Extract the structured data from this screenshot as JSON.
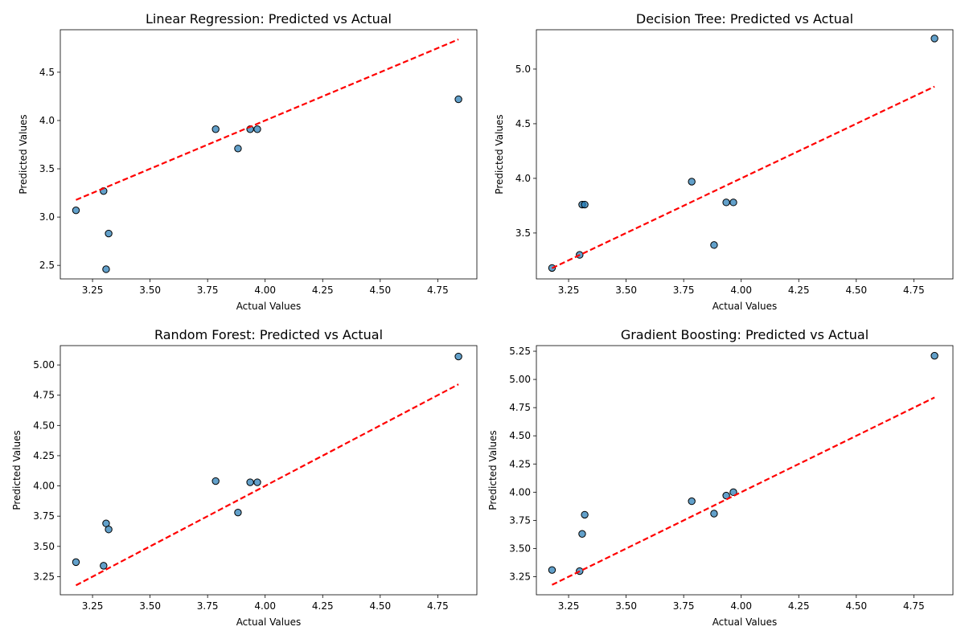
{
  "chart_data": [
    {
      "type": "scatter",
      "title": "Linear Regression: Predicted vs Actual",
      "xlabel": "Actual Values",
      "ylabel": "Predicted Values",
      "xlim": [
        3.11,
        4.92
      ],
      "ylim": [
        2.36,
        4.94
      ],
      "xticks": [
        3.25,
        3.5,
        3.75,
        4.0,
        4.25,
        4.5,
        4.75
      ],
      "xticklabels": [
        "3.25",
        "3.50",
        "3.75",
        "4.00",
        "4.25",
        "4.50",
        "4.75"
      ],
      "yticks": [
        2.5,
        3.0,
        3.5,
        4.0,
        4.5
      ],
      "yticklabels": [
        "2.5",
        "3.0",
        "3.5",
        "4.0",
        "4.5"
      ],
      "x": [
        3.178,
        3.298,
        3.309,
        3.32,
        3.785,
        3.882,
        3.935,
        3.966,
        4.84
      ],
      "y": [
        3.07,
        3.27,
        2.46,
        2.83,
        3.91,
        3.71,
        3.91,
        3.91,
        4.22
      ],
      "reference_line": [
        3.178,
        4.84
      ],
      "point_color": "#1f77b4",
      "line_color": "#ff0000"
    },
    {
      "type": "scatter",
      "title": "Decision Tree: Predicted vs Actual",
      "xlabel": "Actual Values",
      "ylabel": "Predicted Values",
      "xlim": [
        3.11,
        4.92
      ],
      "ylim": [
        3.08,
        5.36
      ],
      "xticks": [
        3.25,
        3.5,
        3.75,
        4.0,
        4.25,
        4.5,
        4.75
      ],
      "xticklabels": [
        "3.25",
        "3.50",
        "3.75",
        "4.00",
        "4.25",
        "4.50",
        "4.75"
      ],
      "yticks": [
        3.5,
        4.0,
        4.5,
        5.0
      ],
      "yticklabels": [
        "3.5",
        "4.0",
        "4.5",
        "5.0"
      ],
      "x": [
        3.178,
        3.298,
        3.309,
        3.32,
        3.785,
        3.882,
        3.935,
        3.966,
        4.84
      ],
      "y": [
        3.18,
        3.3,
        3.76,
        3.76,
        3.97,
        3.39,
        3.78,
        3.78,
        5.28
      ],
      "reference_line": [
        3.178,
        4.84
      ],
      "point_color": "#1f77b4",
      "line_color": "#ff0000"
    },
    {
      "type": "scatter",
      "title": "Random Forest: Predicted vs Actual",
      "xlabel": "Actual Values",
      "ylabel": "Predicted Values",
      "xlim": [
        3.11,
        4.92
      ],
      "ylim": [
        3.1,
        5.16
      ],
      "xticks": [
        3.25,
        3.5,
        3.75,
        4.0,
        4.25,
        4.5,
        4.75
      ],
      "xticklabels": [
        "3.25",
        "3.50",
        "3.75",
        "4.00",
        "4.25",
        "4.50",
        "4.75"
      ],
      "yticks": [
        3.25,
        3.5,
        3.75,
        4.0,
        4.25,
        4.5,
        4.75,
        5.0
      ],
      "yticklabels": [
        "3.25",
        "3.50",
        "3.75",
        "4.00",
        "4.25",
        "4.50",
        "4.75",
        "5.00"
      ],
      "x": [
        3.178,
        3.298,
        3.309,
        3.32,
        3.785,
        3.882,
        3.935,
        3.966,
        4.84
      ],
      "y": [
        3.37,
        3.34,
        3.69,
        3.64,
        4.04,
        3.78,
        4.03,
        4.03,
        5.07
      ],
      "reference_line": [
        3.178,
        4.84
      ],
      "point_color": "#1f77b4",
      "line_color": "#ff0000"
    },
    {
      "type": "scatter",
      "title": "Gradient Boosting: Predicted vs Actual",
      "xlabel": "Actual Values",
      "ylabel": "Predicted Values",
      "xlim": [
        3.11,
        4.92
      ],
      "ylim": [
        3.09,
        5.3
      ],
      "xticks": [
        3.25,
        3.5,
        3.75,
        4.0,
        4.25,
        4.5,
        4.75
      ],
      "xticklabels": [
        "3.25",
        "3.50",
        "3.75",
        "4.00",
        "4.25",
        "4.50",
        "4.75"
      ],
      "yticks": [
        3.25,
        3.5,
        3.75,
        4.0,
        4.25,
        4.5,
        4.75,
        5.0,
        5.25
      ],
      "yticklabels": [
        "3.25",
        "3.50",
        "3.75",
        "4.00",
        "4.25",
        "4.50",
        "4.75",
        "5.00",
        "5.25"
      ],
      "x": [
        3.178,
        3.298,
        3.309,
        3.32,
        3.785,
        3.882,
        3.935,
        3.966,
        4.84
      ],
      "y": [
        3.31,
        3.3,
        3.63,
        3.8,
        3.92,
        3.81,
        3.97,
        4.0,
        5.21
      ],
      "reference_line": [
        3.178,
        4.84
      ],
      "point_color": "#1f77b4",
      "line_color": "#ff0000"
    }
  ]
}
